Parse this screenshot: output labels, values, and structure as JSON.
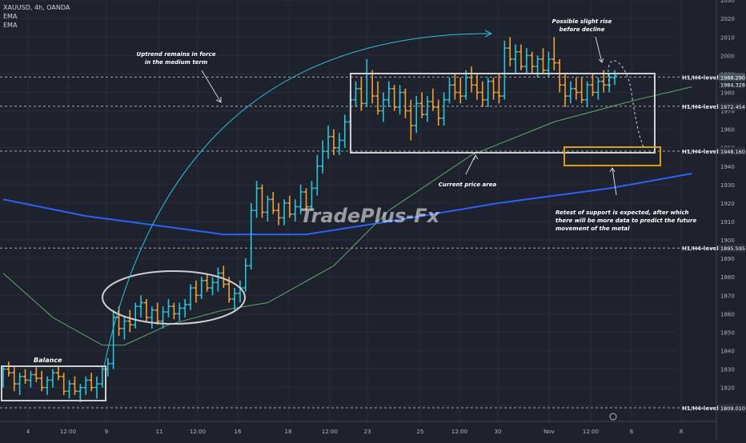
{
  "header": {
    "symbol_line": "XAUUSD, 4h, OANDA",
    "indicators": [
      "EMA",
      "EMA"
    ]
  },
  "watermark": "TradePlus-Fx",
  "colors": {
    "background": "#1e222d",
    "up_candle": "#26c6da",
    "down_candle": "#f0a030",
    "ema_fast": "#66bb6a",
    "ema_slow": "#2962ff",
    "annotation_box": "#cfcfcf",
    "support_box": "#d4a017",
    "arc": "#26c6da"
  },
  "annotations": {
    "uptrend": [
      "Uptrend remains in force",
      "in the medium term"
    ],
    "possible_rise": [
      "Possible slight rise",
      "before decline"
    ],
    "current_area": "Current price area",
    "retest": [
      "Retest of support is expected, after which",
      "there will be more data to predict the future",
      "movement of the metal"
    ],
    "balance": "Balance"
  },
  "chart_data": {
    "type": "candlestick",
    "title": "XAUUSD, 4h, OANDA",
    "ylim": [
      1804,
      2034
    ],
    "y_ticks": [
      1810,
      1820,
      1830,
      1840,
      1850,
      1860,
      1870,
      1880,
      1890,
      1900,
      1910,
      1920,
      1930,
      1940,
      1950,
      1960,
      1970,
      1980,
      1990,
      2000,
      2010,
      2020,
      2030
    ],
    "x_ticks": [
      "4",
      "12:00",
      "9",
      "11",
      "12:00",
      "16",
      "18",
      "12:00",
      "23",
      "25",
      "12:00",
      "30",
      "Nov",
      "12:00",
      "6",
      "8"
    ],
    "price_tags": [
      {
        "label": "1988.290",
        "value": 1988.29,
        "sub": "47:38"
      },
      {
        "label": "1984.328",
        "value": 1984.33
      },
      {
        "label": "1972.454",
        "value": 1972.45
      },
      {
        "label": "1948.160",
        "value": 1948.16
      },
      {
        "label": "1895.595",
        "value": 1895.6
      },
      {
        "label": "1809.010",
        "value": 1809.01
      }
    ],
    "levels": [
      {
        "label": "H1/H4-level",
        "value": 1988.29
      },
      {
        "label": "H1/H4-level",
        "value": 1972.45
      },
      {
        "label": "H1/H4-level",
        "value": 1948.16
      },
      {
        "label": "H1/H4-level",
        "value": 1895.6
      },
      {
        "label": "H1/H4-level",
        "value": 1809.01
      }
    ],
    "candles": [
      [
        1825,
        1832,
        1820,
        1830
      ],
      [
        1830,
        1834,
        1826,
        1828
      ],
      [
        1828,
        1832,
        1818,
        1822
      ],
      [
        1822,
        1828,
        1816,
        1826
      ],
      [
        1826,
        1830,
        1822,
        1824
      ],
      [
        1824,
        1829,
        1820,
        1827
      ],
      [
        1827,
        1831,
        1823,
        1825
      ],
      [
        1825,
        1829,
        1818,
        1820
      ],
      [
        1820,
        1826,
        1816,
        1824
      ],
      [
        1824,
        1830,
        1820,
        1828
      ],
      [
        1828,
        1832,
        1824,
        1826
      ],
      [
        1826,
        1828,
        1816,
        1818
      ],
      [
        1818,
        1824,
        1814,
        1822
      ],
      [
        1822,
        1826,
        1816,
        1818
      ],
      [
        1818,
        1822,
        1812,
        1820
      ],
      [
        1820,
        1826,
        1816,
        1824
      ],
      [
        1824,
        1828,
        1818,
        1820
      ],
      [
        1820,
        1826,
        1814,
        1822
      ],
      [
        1822,
        1832,
        1820,
        1830
      ],
      [
        1830,
        1836,
        1826,
        1833
      ],
      [
        1833,
        1862,
        1830,
        1858
      ],
      [
        1858,
        1864,
        1848,
        1852
      ],
      [
        1852,
        1858,
        1846,
        1856
      ],
      [
        1856,
        1862,
        1850,
        1854
      ],
      [
        1854,
        1866,
        1852,
        1864
      ],
      [
        1864,
        1870,
        1858,
        1866
      ],
      [
        1866,
        1868,
        1856,
        1858
      ],
      [
        1858,
        1864,
        1852,
        1862
      ],
      [
        1862,
        1866,
        1854,
        1856
      ],
      [
        1856,
        1864,
        1852,
        1861
      ],
      [
        1861,
        1868,
        1858,
        1864
      ],
      [
        1864,
        1866,
        1857,
        1860
      ],
      [
        1860,
        1866,
        1856,
        1863
      ],
      [
        1863,
        1868,
        1858,
        1865
      ],
      [
        1865,
        1876,
        1862,
        1874
      ],
      [
        1874,
        1878,
        1866,
        1870
      ],
      [
        1870,
        1880,
        1868,
        1878
      ],
      [
        1878,
        1882,
        1872,
        1874
      ],
      [
        1874,
        1880,
        1870,
        1877
      ],
      [
        1877,
        1885,
        1872,
        1882
      ],
      [
        1882,
        1886,
        1874,
        1876
      ],
      [
        1876,
        1880,
        1866,
        1868
      ],
      [
        1868,
        1874,
        1862,
        1871
      ],
      [
        1871,
        1878,
        1866,
        1874
      ],
      [
        1874,
        1890,
        1872,
        1886
      ],
      [
        1886,
        1920,
        1884,
        1916
      ],
      [
        1916,
        1932,
        1912,
        1928
      ],
      [
        1928,
        1930,
        1912,
        1915
      ],
      [
        1915,
        1924,
        1910,
        1922
      ],
      [
        1922,
        1926,
        1914,
        1916
      ],
      [
        1916,
        1920,
        1908,
        1912
      ],
      [
        1912,
        1922,
        1908,
        1920
      ],
      [
        1920,
        1924,
        1912,
        1914
      ],
      [
        1914,
        1922,
        1910,
        1918
      ],
      [
        1918,
        1930,
        1914,
        1926
      ],
      [
        1926,
        1928,
        1916,
        1918
      ],
      [
        1918,
        1932,
        1916,
        1928
      ],
      [
        1928,
        1946,
        1924,
        1940
      ],
      [
        1940,
        1954,
        1936,
        1948
      ],
      [
        1948,
        1962,
        1944,
        1956
      ],
      [
        1956,
        1960,
        1946,
        1950
      ],
      [
        1950,
        1958,
        1946,
        1954
      ],
      [
        1954,
        1968,
        1950,
        1964
      ],
      [
        1964,
        1980,
        1960,
        1976
      ],
      [
        1976,
        1986,
        1972,
        1982
      ],
      [
        1982,
        1988,
        1970,
        1974
      ],
      [
        1974,
        1998,
        1972,
        1990
      ],
      [
        1990,
        1992,
        1974,
        1978
      ],
      [
        1978,
        1986,
        1968,
        1970
      ],
      [
        1970,
        1980,
        1964,
        1976
      ],
      [
        1976,
        1986,
        1972,
        1982
      ],
      [
        1982,
        1984,
        1970,
        1972
      ],
      [
        1972,
        1984,
        1968,
        1980
      ],
      [
        1980,
        1982,
        1966,
        1970
      ],
      [
        1970,
        1976,
        1954,
        1962
      ],
      [
        1962,
        1978,
        1958,
        1974
      ],
      [
        1974,
        1980,
        1966,
        1968
      ],
      [
        1968,
        1978,
        1964,
        1975
      ],
      [
        1975,
        1982,
        1970,
        1972
      ],
      [
        1972,
        1976,
        1962,
        1966
      ],
      [
        1966,
        1980,
        1962,
        1976
      ],
      [
        1976,
        1988,
        1974,
        1984
      ],
      [
        1984,
        1990,
        1976,
        1980
      ],
      [
        1980,
        1988,
        1974,
        1978
      ],
      [
        1978,
        1992,
        1976,
        1988
      ],
      [
        1988,
        1994,
        1980,
        1984
      ],
      [
        1984,
        1990,
        1976,
        1980
      ],
      [
        1980,
        1986,
        1972,
        1976
      ],
      [
        1976,
        1988,
        1972,
        1986
      ],
      [
        1986,
        1988,
        1976,
        1980
      ],
      [
        1980,
        1990,
        1974,
        1978
      ],
      [
        1978,
        2008,
        1976,
        2004
      ],
      [
        2004,
        2010,
        1994,
        1998
      ],
      [
        1998,
        2006,
        1990,
        2002
      ],
      [
        2002,
        2006,
        1992,
        1994
      ],
      [
        1994,
        2004,
        1990,
        2000
      ],
      [
        2000,
        2002,
        1990,
        1994
      ],
      [
        1994,
        2000,
        1988,
        1998
      ],
      [
        1998,
        2004,
        1990,
        1992
      ],
      [
        1992,
        2002,
        1988,
        1998
      ],
      [
        1998,
        2010,
        1992,
        1996
      ],
      [
        1996,
        1998,
        1980,
        1984
      ],
      [
        1984,
        1990,
        1972,
        1978
      ],
      [
        1978,
        1986,
        1974,
        1982
      ],
      [
        1982,
        1988,
        1976,
        1980
      ],
      [
        1980,
        1988,
        1974,
        1976
      ],
      [
        1976,
        1986,
        1972,
        1984
      ],
      [
        1984,
        1990,
        1978,
        1980
      ],
      [
        1980,
        1988,
        1976,
        1986
      ],
      [
        1986,
        1992,
        1980,
        1984
      ],
      [
        1984,
        1990,
        1980,
        1988
      ],
      [
        1988,
        1992,
        1984,
        1989
      ]
    ],
    "ema_fast": [
      [
        0,
        1882
      ],
      [
        9,
        1858
      ],
      [
        18,
        1843
      ],
      [
        22,
        1843
      ],
      [
        30,
        1854
      ],
      [
        40,
        1862
      ],
      [
        48,
        1866
      ],
      [
        60,
        1886
      ],
      [
        70,
        1916
      ],
      [
        85,
        1946
      ],
      [
        100,
        1964
      ],
      [
        115,
        1976
      ],
      [
        125,
        1983
      ]
    ],
    "ema_slow": [
      [
        0,
        1922
      ],
      [
        15,
        1913
      ],
      [
        40,
        1903
      ],
      [
        55,
        1903
      ],
      [
        70,
        1910
      ],
      [
        90,
        1920
      ],
      [
        110,
        1928
      ],
      [
        125,
        1936
      ]
    ]
  }
}
